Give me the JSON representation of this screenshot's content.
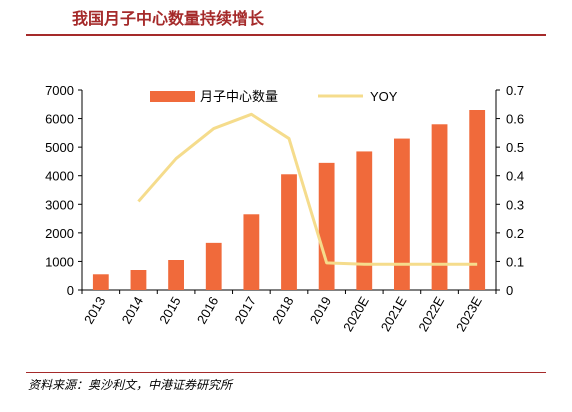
{
  "header": {
    "title": "我国月子中心数量持续增长"
  },
  "footer": {
    "source": "资料来源：奥沙利文，中港证券研究所"
  },
  "chart_data": {
    "type": "bar",
    "categories": [
      "2013",
      "2014",
      "2015",
      "2016",
      "2017",
      "2018",
      "2019",
      "2020E",
      "2021E",
      "2022E",
      "2023E"
    ],
    "series": [
      {
        "name": "月子中心数量",
        "type": "bar",
        "axis": "left",
        "color": "#f06a3b",
        "values": [
          550,
          700,
          1050,
          1650,
          2650,
          4050,
          4450,
          4850,
          5300,
          5800,
          6300
        ]
      },
      {
        "name": "YOY",
        "type": "line",
        "axis": "right",
        "color": "#f5dc8c",
        "values": [
          null,
          0.31,
          0.46,
          0.565,
          0.615,
          0.53,
          0.095,
          0.09,
          0.09,
          0.09,
          0.09
        ]
      }
    ],
    "ylim_left": [
      0,
      7000
    ],
    "yticks_left": [
      "0",
      "1000",
      "2000",
      "3000",
      "4000",
      "5000",
      "6000",
      "7000"
    ],
    "ylim_right": [
      0,
      0.7
    ],
    "yticks_right": [
      "0",
      "0.1",
      "0.2",
      "0.3",
      "0.4",
      "0.5",
      "0.6",
      "0.7"
    ],
    "legend_position": "top-center",
    "grid": false
  }
}
